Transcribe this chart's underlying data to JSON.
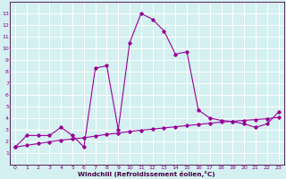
{
  "xlabel": "Windchill (Refroidissement éolien,°C)",
  "x": [
    0,
    1,
    2,
    3,
    4,
    5,
    6,
    7,
    8,
    9,
    10,
    11,
    12,
    13,
    14,
    15,
    16,
    17,
    18,
    19,
    20,
    21,
    22,
    23
  ],
  "line1_y": [
    1.5,
    2.5,
    2.5,
    2.5,
    3.2,
    2.5,
    1.5,
    8.3,
    8.5,
    3.0,
    10.5,
    13.0,
    12.5,
    11.5,
    9.5,
    9.7,
    4.7,
    4.0,
    3.8,
    3.7,
    3.5,
    3.2,
    3.5,
    4.5
  ],
  "line2_y": [
    1.5,
    1.65,
    1.8,
    1.95,
    2.1,
    2.2,
    2.3,
    2.45,
    2.6,
    2.7,
    2.85,
    2.95,
    3.05,
    3.15,
    3.25,
    3.35,
    3.45,
    3.55,
    3.65,
    3.72,
    3.8,
    3.87,
    3.95,
    4.05
  ],
  "line_color": "#990099",
  "bg_color": "#d4f0f0",
  "grid_color": "#ffffff",
  "ylim_min": 0,
  "ylim_max": 14,
  "xlim_min": -0.5,
  "xlim_max": 23.5,
  "yticks": [
    1,
    2,
    3,
    4,
    5,
    6,
    7,
    8,
    9,
    10,
    11,
    12,
    13
  ],
  "xticks": [
    0,
    1,
    2,
    3,
    4,
    5,
    6,
    7,
    8,
    9,
    10,
    11,
    12,
    13,
    14,
    15,
    16,
    17,
    18,
    19,
    20,
    21,
    22,
    23
  ]
}
